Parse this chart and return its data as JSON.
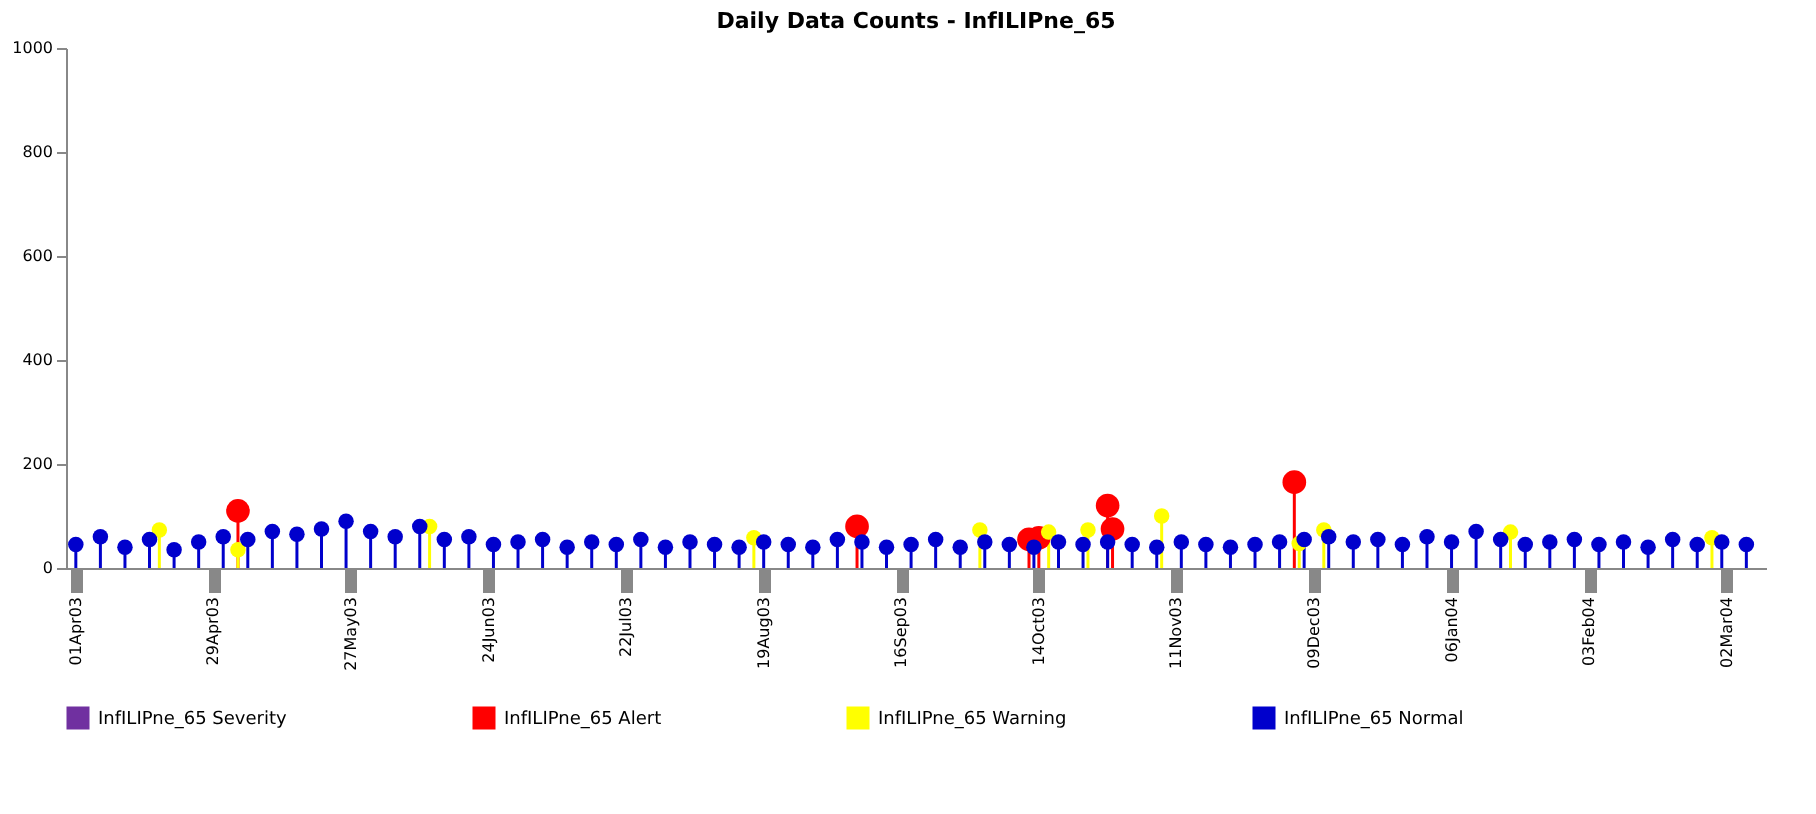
{
  "chart_data": {
    "type": "lollipop",
    "title": "Daily Data Counts - InfILIPne_65",
    "xlim": [
      "2003-03-30",
      "2004-03-10"
    ],
    "xticks": [
      {
        "value": "2003-04-01",
        "label": "01Apr03"
      },
      {
        "value": "2003-04-29",
        "label": "29Apr03"
      },
      {
        "value": "2003-05-27",
        "label": "27May03"
      },
      {
        "value": "2003-06-24",
        "label": "24Jun03"
      },
      {
        "value": "2003-07-22",
        "label": "22Jul03"
      },
      {
        "value": "2003-08-19",
        "label": "19Aug03"
      },
      {
        "value": "2003-09-16",
        "label": "16Sep03"
      },
      {
        "value": "2003-10-14",
        "label": "14Oct03"
      },
      {
        "value": "2003-11-11",
        "label": "11Nov03"
      },
      {
        "value": "2003-12-09",
        "label": "09Dec03"
      },
      {
        "value": "2004-01-06",
        "label": "06Jan04"
      },
      {
        "value": "2004-02-03",
        "label": "03Feb04"
      },
      {
        "value": "2004-03-02",
        "label": "02Mar04"
      }
    ],
    "ylim": [
      0,
      1000
    ],
    "yticks": [
      0,
      200,
      400,
      600,
      800,
      1000
    ],
    "grid": false,
    "legend": "bottom",
    "marker": "circle",
    "series": [
      {
        "name": "InfILIPne_65 Severity",
        "color": "#7030a0"
      },
      {
        "name": "InfILIPne_65 Alert",
        "color": "#ff0000",
        "x": [
          "2003-05-04",
          "2003-09-07",
          "2003-10-12",
          "2003-10-14",
          "2003-10-28",
          "2003-10-29",
          "2003-12-05"
        ],
        "values": [
          110,
          80,
          55,
          58,
          120,
          75,
          165
        ]
      },
      {
        "name": "InfILIPne_65 Warning",
        "color": "#ffff00",
        "x": [
          "2003-04-18",
          "2003-05-04",
          "2003-06-12",
          "2003-08-17",
          "2003-10-02",
          "2003-10-16",
          "2003-10-24",
          "2003-11-08",
          "2003-12-06",
          "2003-12-11",
          "2004-01-18",
          "2004-02-28"
        ],
        "values": [
          73,
          35,
          80,
          58,
          73,
          69,
          73,
          100,
          47,
          73,
          69,
          58
        ]
      },
      {
        "name": "InfILIPne_65 Normal",
        "color": "#0000cc",
        "x": [
          "2003-04-01",
          "2003-04-06",
          "2003-04-11",
          "2003-04-16",
          "2003-04-21",
          "2003-04-26",
          "2003-05-01",
          "2003-05-06",
          "2003-05-11",
          "2003-05-16",
          "2003-05-21",
          "2003-05-26",
          "2003-05-31",
          "2003-06-05",
          "2003-06-10",
          "2003-06-15",
          "2003-06-20",
          "2003-06-25",
          "2003-06-30",
          "2003-07-05",
          "2003-07-10",
          "2003-07-15",
          "2003-07-20",
          "2003-07-25",
          "2003-07-30",
          "2003-08-04",
          "2003-08-09",
          "2003-08-14",
          "2003-08-19",
          "2003-08-24",
          "2003-08-29",
          "2003-09-03",
          "2003-09-08",
          "2003-09-13",
          "2003-09-18",
          "2003-09-23",
          "2003-09-28",
          "2003-10-03",
          "2003-10-08",
          "2003-10-13",
          "2003-10-18",
          "2003-10-23",
          "2003-10-28",
          "2003-11-02",
          "2003-11-07",
          "2003-11-12",
          "2003-11-17",
          "2003-11-22",
          "2003-11-27",
          "2003-12-02",
          "2003-12-07",
          "2003-12-12",
          "2003-12-17",
          "2003-12-22",
          "2003-12-27",
          "2004-01-01",
          "2004-01-06",
          "2004-01-11",
          "2004-01-16",
          "2004-01-21",
          "2004-01-26",
          "2004-01-31",
          "2004-02-05",
          "2004-02-10",
          "2004-02-15",
          "2004-02-20",
          "2004-02-25",
          "2004-03-01",
          "2004-03-06"
        ],
        "values": [
          45,
          60,
          40,
          55,
          35,
          50,
          60,
          55,
          70,
          65,
          75,
          90,
          70,
          60,
          80,
          55,
          60,
          45,
          50,
          55,
          40,
          50,
          45,
          55,
          40,
          50,
          45,
          40,
          50,
          45,
          40,
          55,
          50,
          40,
          45,
          55,
          40,
          50,
          45,
          40,
          50,
          45,
          50,
          45,
          40,
          50,
          45,
          40,
          45,
          50,
          55,
          60,
          50,
          55,
          45,
          60,
          50,
          70,
          55,
          45,
          50,
          55,
          45,
          50,
          40,
          55,
          45,
          50,
          45
        ]
      }
    ]
  }
}
